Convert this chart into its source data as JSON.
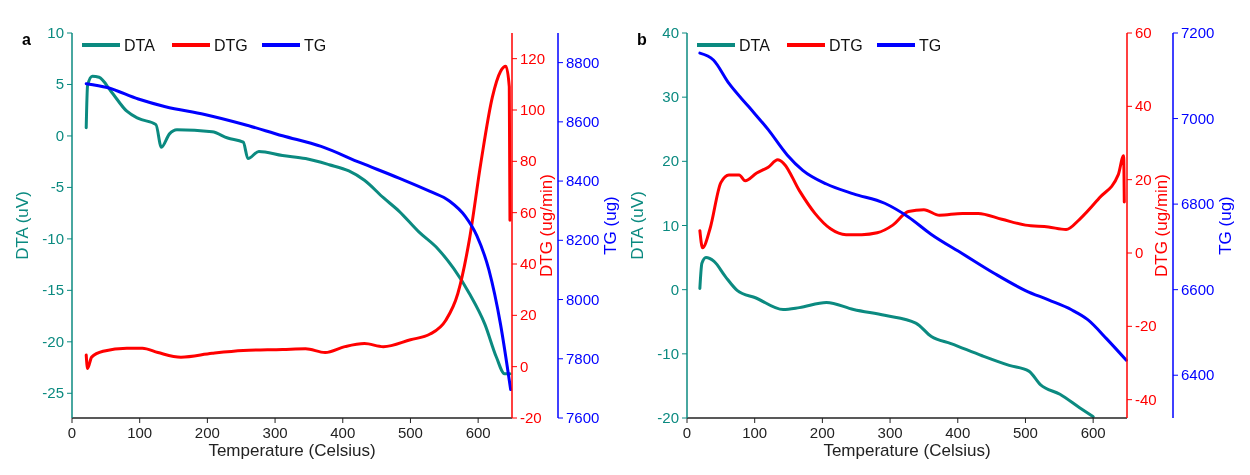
{
  "chart_data": [
    {
      "type": "line",
      "title": "a",
      "xlabel": "Temperature (Celsius)",
      "ylabel": "DTA (uV)",
      "y2label": "DTG (ug/min)",
      "y3label": "TG (ug)",
      "legend": "top left",
      "xlim": [
        0,
        650
      ],
      "xticks": [
        0,
        100,
        200,
        300,
        400,
        500,
        600
      ],
      "ylim": [
        -27.4,
        10
      ],
      "yticks": [
        -25,
        -20,
        -15,
        -10,
        -5,
        0,
        5,
        10
      ],
      "y2lim": [
        -20,
        130
      ],
      "y2ticks": [
        -20,
        0,
        20,
        40,
        60,
        80,
        100,
        120
      ],
      "y3lim": [
        7600,
        8900
      ],
      "y3ticks": [
        7600,
        7800,
        8000,
        8200,
        8400,
        8600,
        8800
      ],
      "series": [
        {
          "name": "DTA",
          "color": "#0b8a80",
          "axis": "y",
          "x": [
            21,
            23,
            30,
            40,
            58,
            81,
            98,
            124,
            132,
            144,
            155,
            207,
            230,
            253,
            260,
            276,
            311,
            345,
            380,
            409,
            432,
            460,
            483,
            512,
            541,
            564,
            587,
            610,
            627,
            639,
            647
          ],
          "values": [
            0.8,
            4.9,
            5.8,
            5.7,
            4.3,
            2.4,
            1.7,
            1.1,
            -1.1,
            0.2,
            0.6,
            0.4,
            -0.2,
            -0.6,
            -2.2,
            -1.5,
            -1.9,
            -2.2,
            -2.8,
            -3.4,
            -4.3,
            -6.0,
            -7.3,
            -9.3,
            -11.0,
            -12.9,
            -15.3,
            -18.3,
            -21.5,
            -23.1,
            -23.1
          ]
        },
        {
          "name": "DTG",
          "color": "#ff0000",
          "axis": "y2",
          "x": [
            21,
            23,
            29,
            46,
            81,
            104,
            127,
            161,
            207,
            253,
            311,
            345,
            374,
            403,
            432,
            460,
            500,
            529,
            552,
            570,
            587,
            604,
            621,
            633,
            641,
            646,
            647
          ],
          "values": [
            4.5,
            -0.7,
            3.7,
            6,
            7.2,
            7.2,
            5.5,
            3.7,
            5.2,
            6.3,
            6.7,
            7,
            5.5,
            7.8,
            9,
            7.8,
            10.5,
            12.7,
            18,
            28.5,
            49.4,
            79.4,
            105,
            115,
            117,
            109,
            57
          ]
        },
        {
          "name": "TG",
          "color": "#0000ff",
          "axis": "y3",
          "x": [
            21,
            52,
            98,
            138,
            196,
            253,
            311,
            368,
            426,
            483,
            529,
            558,
            581,
            598,
            616,
            633,
            648
          ],
          "values": [
            8729,
            8716,
            8677,
            8651,
            8625,
            8592,
            8553,
            8517,
            8462,
            8410,
            8365,
            8332,
            8281,
            8216,
            8099,
            7917,
            7696
          ]
        }
      ]
    },
    {
      "type": "line",
      "title": "b",
      "xlabel": "Temperature (Celsius)",
      "ylabel": "DTA (uV)",
      "y2label": "DTG (ug/min)",
      "y3label": "TG (ug)",
      "legend": "top left",
      "xlim": [
        0,
        650
      ],
      "xticks": [
        0,
        100,
        200,
        300,
        400,
        500,
        600
      ],
      "ylim": [
        -20,
        40
      ],
      "yticks": [
        -20,
        -10,
        0,
        10,
        20,
        30,
        40
      ],
      "y2lim": [
        -45,
        60
      ],
      "y2ticks": [
        -40,
        -20,
        0,
        20,
        40,
        60
      ],
      "y3lim": [
        6300,
        7200
      ],
      "y3ticks": [
        6400,
        6600,
        6800,
        7000,
        7200
      ],
      "series": [
        {
          "name": "DTA",
          "color": "#0b8a80",
          "axis": "y",
          "x": [
            19,
            22,
            28,
            40,
            57,
            74,
            102,
            142,
            166,
            206,
            246,
            292,
            338,
            361,
            390,
            436,
            476,
            505,
            522,
            551,
            580,
            600
          ],
          "values": [
            0.2,
            4.1,
            5,
            4.4,
            2,
            -0.1,
            -1.3,
            -3.1,
            -2.8,
            -2,
            -3.1,
            -4,
            -5.2,
            -7.3,
            -8.4,
            -10.3,
            -11.8,
            -12.7,
            -14.8,
            -16.3,
            -18.4,
            -19.8
          ]
        },
        {
          "name": "DTG",
          "color": "#ff0000",
          "axis": "y2",
          "x": [
            19,
            23,
            34,
            50,
            62,
            77,
            86,
            103,
            120,
            134,
            143,
            166,
            189,
            212,
            235,
            258,
            281,
            304,
            327,
            350,
            373,
            407,
            430,
            465,
            500,
            534,
            560,
            580,
            609,
            637,
            645,
            646
          ],
          "values": [
            6.1,
            1.4,
            6.6,
            19.2,
            21.3,
            21.3,
            19.7,
            21.8,
            23.4,
            25.4,
            24.4,
            17,
            10.8,
            6.6,
            5,
            5,
            5.5,
            7.6,
            11.3,
            11.8,
            10.3,
            10.8,
            10.8,
            9.2,
            7.6,
            7.1,
            6.4,
            9.2,
            15,
            21.3,
            26.5,
            13.9
          ]
        },
        {
          "name": "TG",
          "color": "#0000ff",
          "axis": "y3",
          "x": [
            19,
            39,
            62,
            91,
            120,
            148,
            171,
            206,
            246,
            292,
            327,
            361,
            407,
            453,
            500,
            534,
            568,
            592,
            620,
            649
          ],
          "values": [
            7153,
            7137,
            7082,
            7028,
            6974,
            6915,
            6879,
            6847,
            6824,
            6802,
            6770,
            6729,
            6684,
            6639,
            6598,
            6576,
            6553,
            6530,
            6485,
            6435
          ]
        }
      ]
    }
  ]
}
